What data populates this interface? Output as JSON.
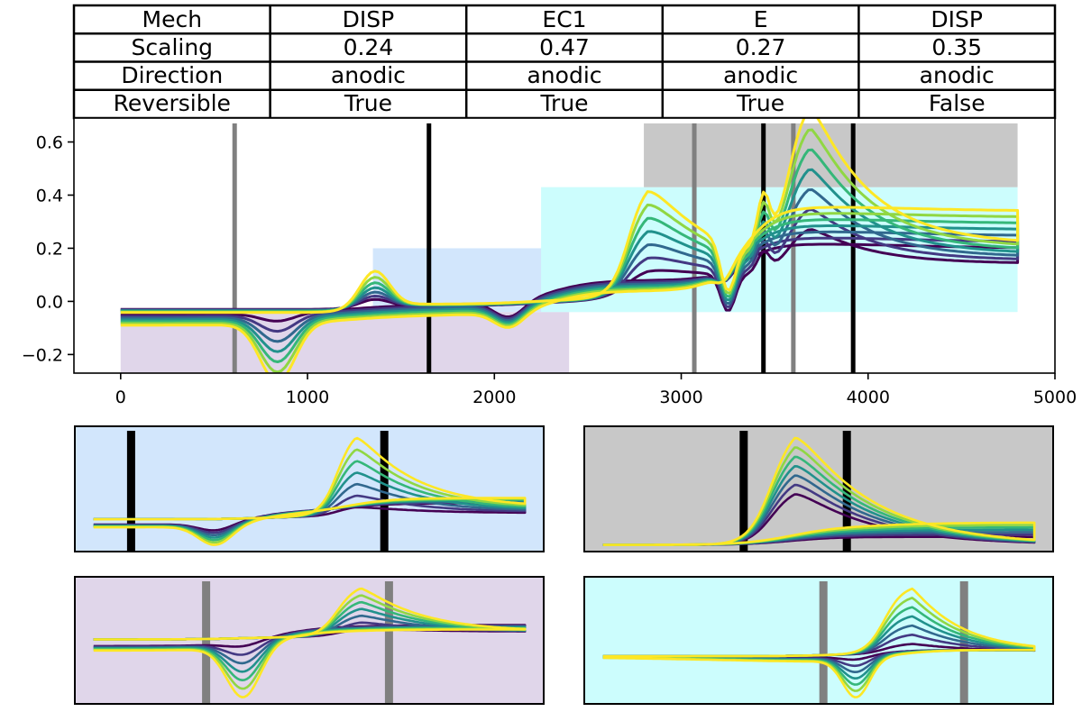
{
  "table": {
    "rows": [
      {
        "label": "Mech",
        "cells": [
          "DISP",
          "EC1",
          "E",
          "DISP"
        ]
      },
      {
        "label": "Scaling",
        "cells": [
          "0.24",
          "0.47",
          "0.27",
          "0.35"
        ]
      },
      {
        "label": "Direction",
        "cells": [
          "anodic",
          "anodic",
          "anodic",
          "anodic"
        ]
      },
      {
        "label": "Reversible",
        "cells": [
          "True",
          "True",
          "True",
          "False"
        ]
      }
    ]
  },
  "chart_data": {
    "type": "line",
    "title": "",
    "xlabel": "",
    "ylabel": "",
    "xlim": [
      -250,
      5000
    ],
    "ylim": [
      -0.27,
      0.69
    ],
    "xticks": [
      "0",
      "1000",
      "2000",
      "3000",
      "4000",
      "5000"
    ],
    "yticks": [
      "−0.2",
      "0.0",
      "0.2",
      "0.4",
      "0.6"
    ],
    "series_colors": [
      "#440154",
      "#443983",
      "#31688e",
      "#21918c",
      "#35b779",
      "#90d743",
      "#fde725"
    ],
    "series_count": 7,
    "description_scan_range": [
      0,
      4800
    ],
    "mechanism_regions": [
      {
        "mech": "DISP",
        "x": [
          0,
          2400
        ],
        "y": [
          -0.27,
          -0.04
        ],
        "color": "#e0d6ea"
      },
      {
        "mech": "EC1",
        "x": [
          1350,
          3750
        ],
        "y": [
          -0.04,
          0.2
        ],
        "color": "#d2e6fc"
      },
      {
        "mech": "E",
        "x": [
          2250,
          4800
        ],
        "y": [
          -0.04,
          0.43
        ],
        "color": "#ccfdfd"
      },
      {
        "mech": "DISP",
        "x": [
          2800,
          4800
        ],
        "y": [
          0.43,
          0.67
        ],
        "color": "#c8c8c8"
      }
    ],
    "gray_markers_x": [
      610,
      3070,
      3600
    ],
    "black_markers_x": [
      1650,
      3440,
      3920
    ],
    "insets": [
      {
        "mech": "EC1",
        "background": "#d2e6fc",
        "marker_color": "#000000"
      },
      {
        "mech": "DISP",
        "background": "#c8c8c8",
        "marker_color": "#000000"
      },
      {
        "mech": "DISP",
        "background": "#e0d6ea",
        "marker_color": "#808080"
      },
      {
        "mech": "E",
        "background": "#ccfdfd",
        "marker_color": "#808080"
      }
    ]
  }
}
